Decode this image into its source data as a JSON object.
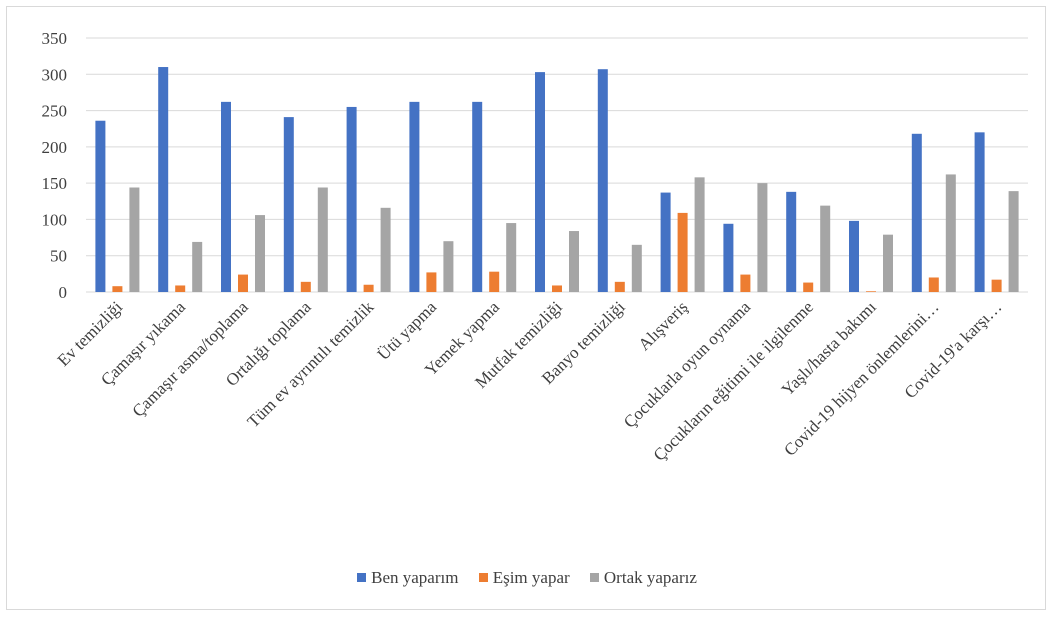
{
  "chart_data": {
    "type": "bar",
    "categories": [
      "Ev temizliği",
      "Çamaşır yıkama",
      "Çamaşır asma/toplama",
      "Ortalığı toplama",
      "Tüm ev ayrıntılı temizlik",
      "Ütü yapma",
      "Yemek yapma",
      "Mutfak temizliği",
      "Banyo temizliği",
      "Alışveriş",
      "Çocuklarla oyun oynama",
      "Çocukların eğitimi ile ilgilenme",
      "Yaşlı/hasta bakımı",
      "Covid-19 hijyen önlemlerini…",
      "Covid-19'a karşı…"
    ],
    "series": [
      {
        "name": "Ben yaparım",
        "color": "#4472c4",
        "values": [
          236,
          310,
          262,
          241,
          255,
          262,
          262,
          303,
          307,
          137,
          94,
          138,
          98,
          218,
          220
        ]
      },
      {
        "name": "Eşim yapar",
        "color": "#ed7d31",
        "values": [
          8,
          9,
          24,
          14,
          10,
          27,
          28,
          9,
          14,
          109,
          24,
          13,
          1,
          20,
          17
        ]
      },
      {
        "name": "Ortak yaparız",
        "color": "#a5a5a5",
        "values": [
          144,
          69,
          106,
          144,
          116,
          70,
          95,
          84,
          65,
          158,
          150,
          119,
          79,
          162,
          139
        ]
      }
    ],
    "yticks": [
      0,
      50,
      100,
      150,
      200,
      250,
      300,
      350
    ],
    "ylim": [
      0,
      350
    ],
    "grid": true,
    "legend_position": "bottom",
    "title": "",
    "xlabel": "",
    "ylabel": ""
  }
}
